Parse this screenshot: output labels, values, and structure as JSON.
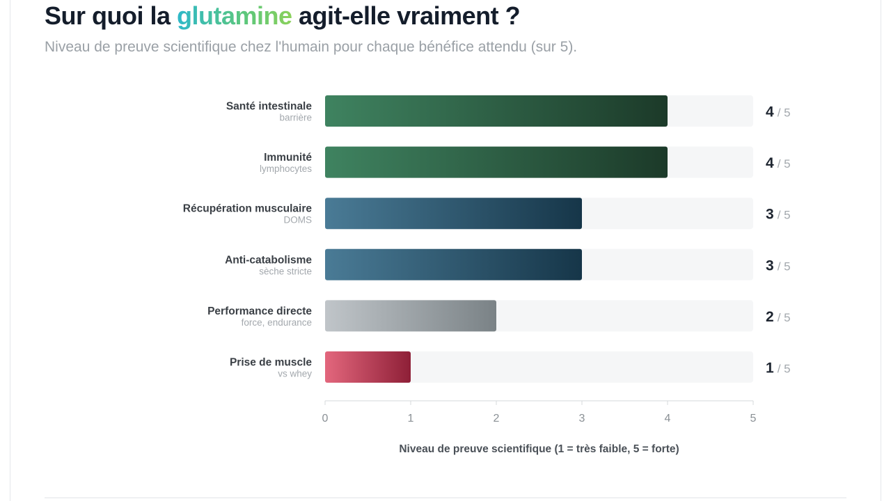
{
  "header": {
    "title_before": "Sur quoi la ",
    "title_highlight": "glutamine",
    "title_after": " agit-elle vraiment ?",
    "subtitle": "Niveau de preuve scientifique chez l'humain pour chaque bénéfice attendu (sur 5)."
  },
  "chart_data": {
    "type": "bar",
    "orientation": "horizontal",
    "categories": [
      "Santé intestinale",
      "Immunité",
      "Récupération musculaire",
      "Anti-catabolisme",
      "Performance directe",
      "Prise de muscle"
    ],
    "sublabels": [
      "barrière",
      "lymphocytes",
      "DOMS",
      "sèche stricte",
      "force, endurance",
      "vs whey"
    ],
    "values": [
      4,
      4,
      3,
      3,
      2,
      1
    ],
    "max": 5,
    "value_suffix": "/ 5",
    "xlim": [
      0,
      5
    ],
    "xticks": [
      "0",
      "1",
      "2",
      "3",
      "4",
      "5"
    ],
    "xlabel": "Niveau de preuve scientifique (1 = très faible, 5 = forte)",
    "ylabel": "",
    "grid": false,
    "colors": {
      "green": [
        "#3f8360",
        "#1c3a29"
      ],
      "blue": [
        "#4a7b96",
        "#163649"
      ],
      "gray": [
        "#c0c5c9",
        "#7a8286"
      ],
      "red": [
        "#e3677d",
        "#8e1f37"
      ],
      "track": "#f5f6f7",
      "axis": "#d5d8db"
    },
    "bar_colors": [
      "green",
      "green",
      "blue",
      "blue",
      "gray",
      "red"
    ]
  }
}
